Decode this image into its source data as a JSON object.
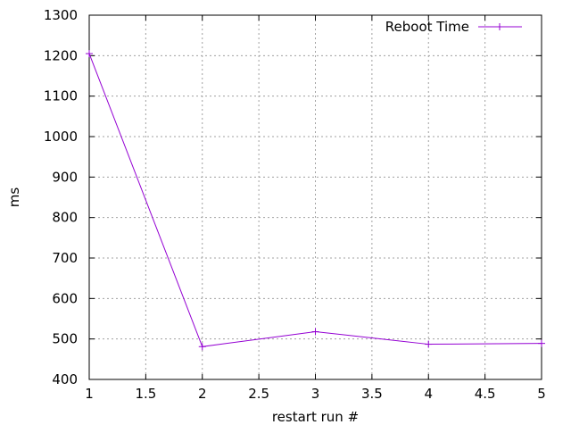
{
  "chart_data": {
    "type": "line",
    "title": "",
    "xlabel": "restart run #",
    "ylabel": "ms",
    "xlim": [
      1,
      5
    ],
    "ylim": [
      400,
      1300
    ],
    "x_ticks": [
      "1",
      "1.5",
      "2",
      "2.5",
      "3",
      "3.5",
      "4",
      "4.5",
      "5"
    ],
    "y_ticks": [
      "400",
      "500",
      "600",
      "700",
      "800",
      "900",
      "1000",
      "1100",
      "1200",
      "1300"
    ],
    "grid": true,
    "legend_position": "top-right",
    "series": [
      {
        "name": "Reboot Time",
        "color": "#9400d3",
        "marker": "plus",
        "x": [
          1,
          2,
          3,
          4,
          5
        ],
        "y": [
          1205,
          481,
          518,
          487,
          489
        ]
      }
    ]
  }
}
